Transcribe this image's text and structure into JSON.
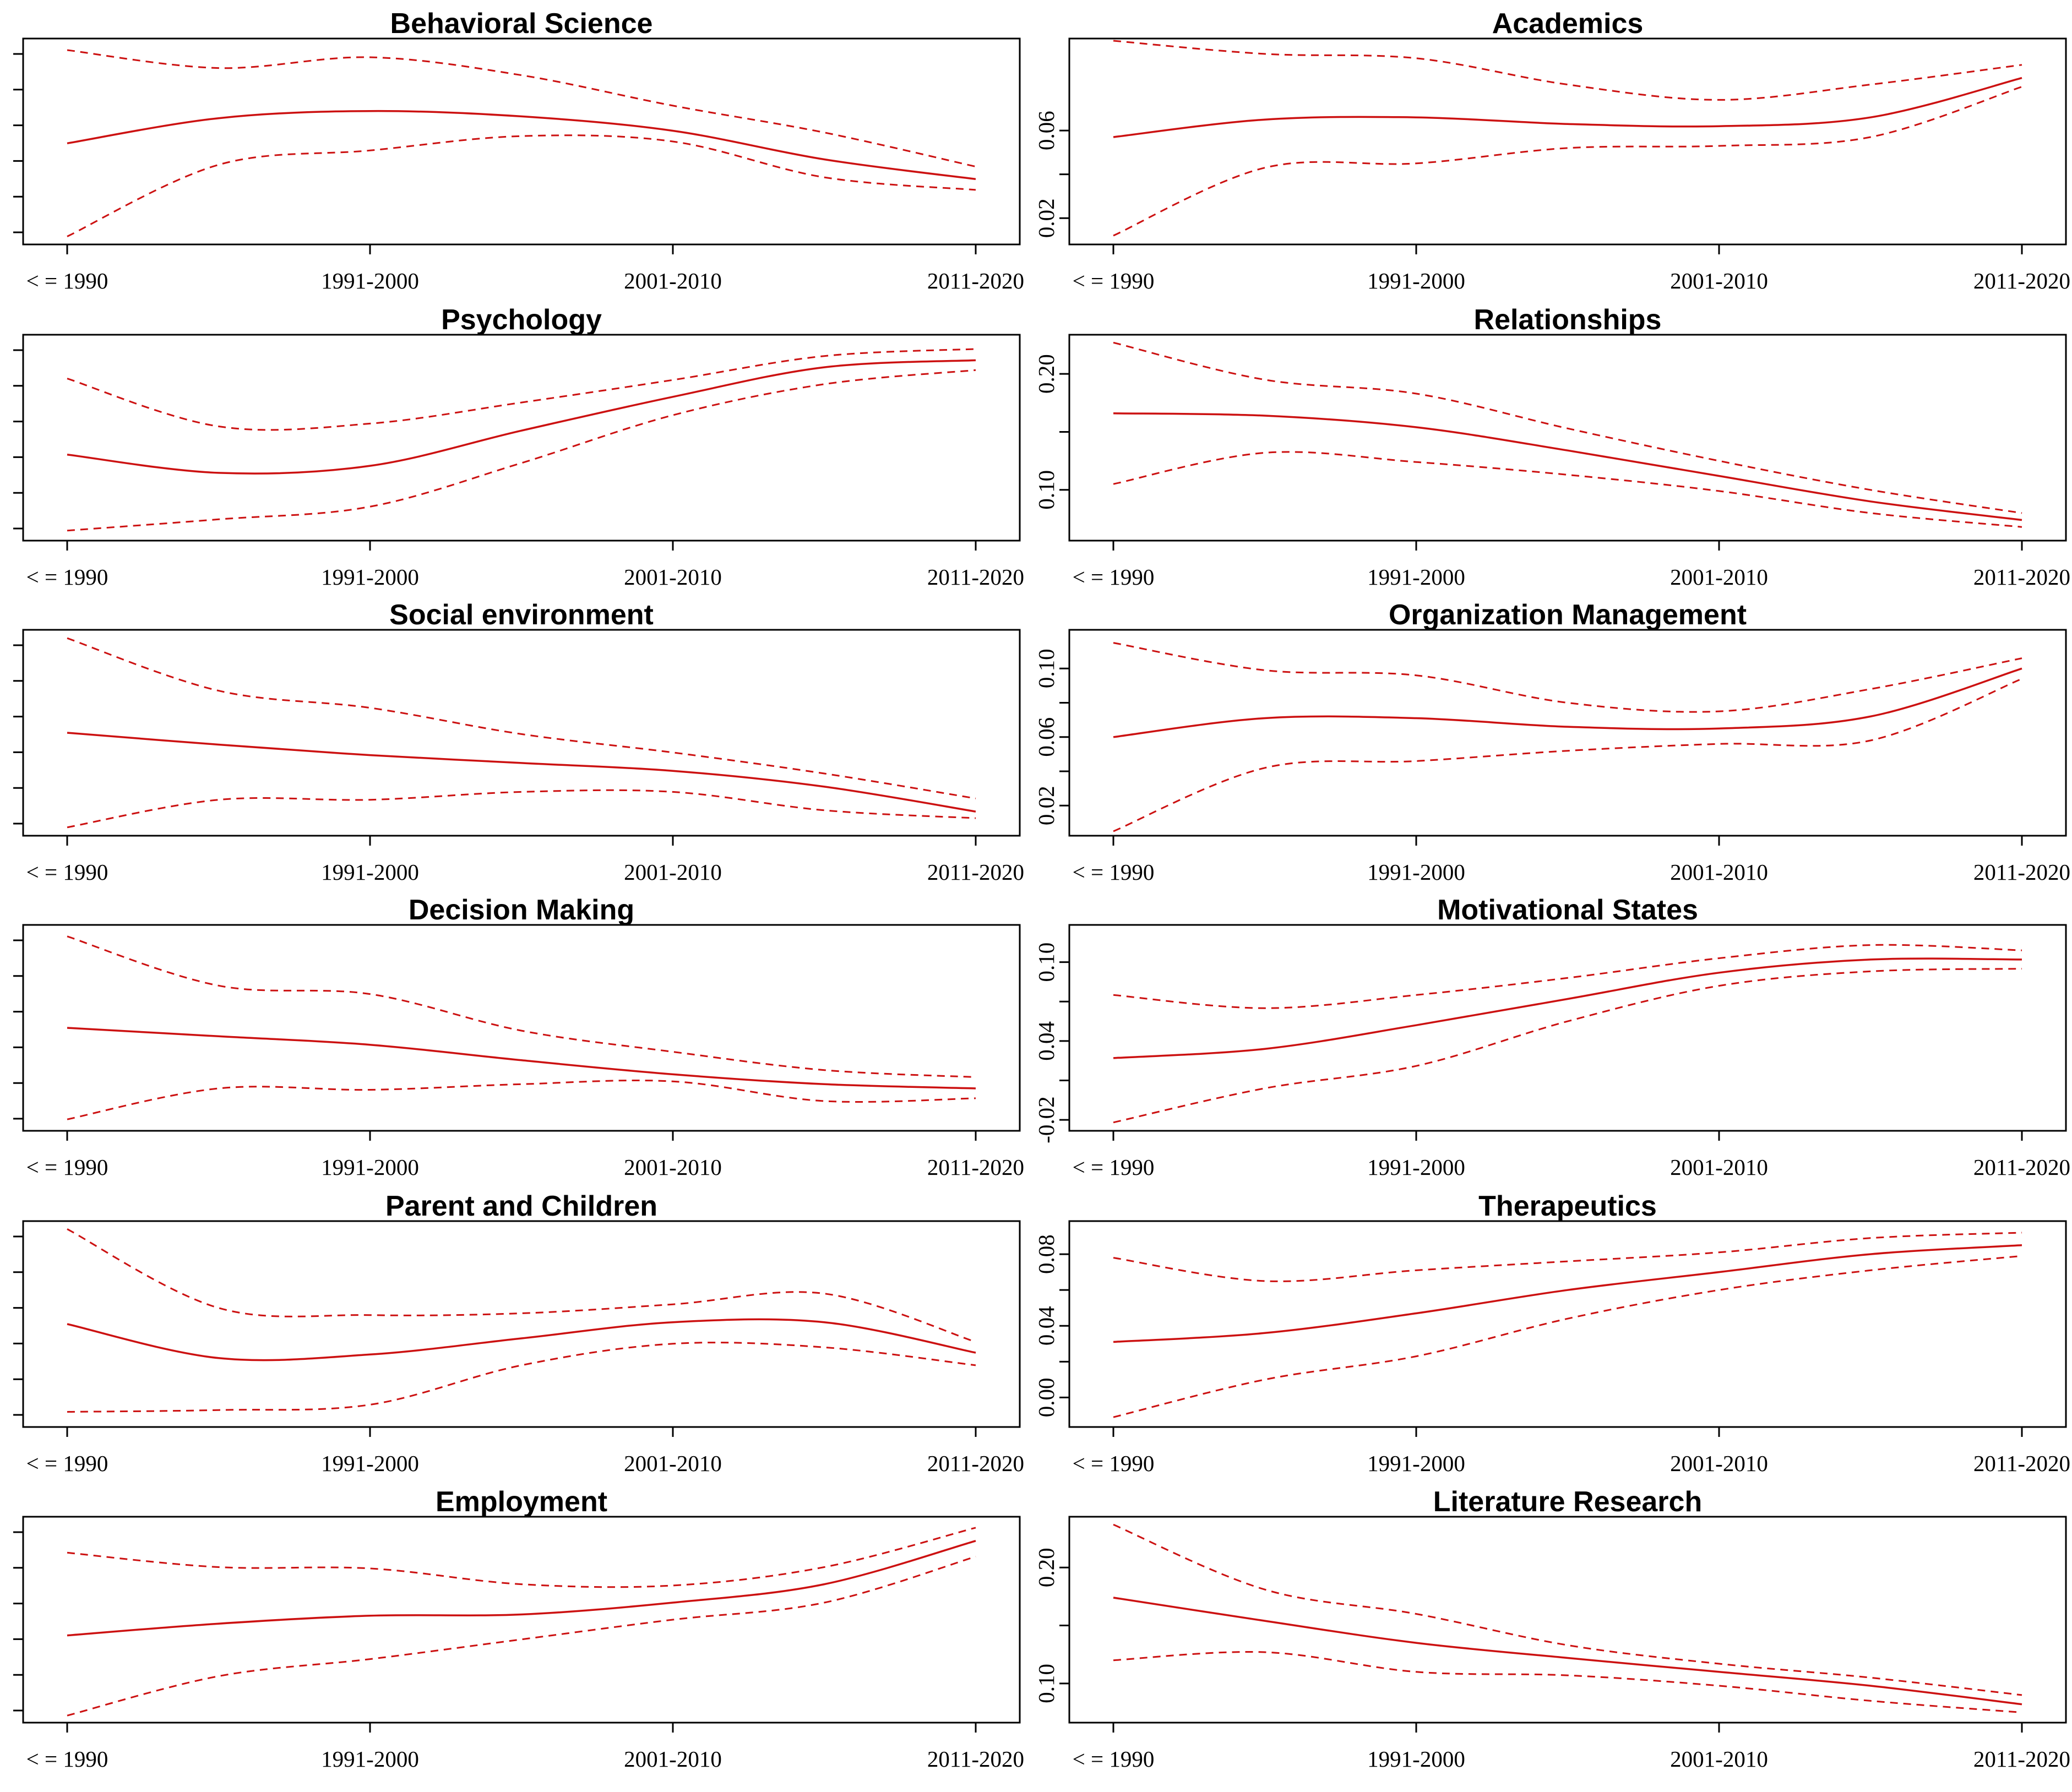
{
  "chart_data": [
    {
      "type": "line",
      "title": "Behavioral Science",
      "categories": [
        "< = 1990",
        "1991-2000",
        "2001-2010",
        "2011-2020"
      ],
      "x": [
        0,
        0.5,
        1,
        1.5,
        2,
        2.5,
        3
      ],
      "ylim": [
        0,
        0.11
      ],
      "yticks": [],
      "series": [
        {
          "name": "fit",
          "values": [
            0.054,
            0.068,
            0.072,
            0.069,
            0.061,
            0.045,
            0.034
          ]
        },
        {
          "name": "upper",
          "values": [
            0.106,
            0.096,
            0.102,
            0.092,
            0.075,
            0.06,
            0.041
          ]
        },
        {
          "name": "lower",
          "values": [
            0.002,
            0.042,
            0.05,
            0.058,
            0.055,
            0.035,
            0.028
          ]
        }
      ]
    },
    {
      "type": "line",
      "title": "Academics",
      "categories": [
        "< = 1990",
        "1991-2000",
        "2001-2010",
        "2011-2020"
      ],
      "x": [
        0,
        0.5,
        1,
        1.5,
        2,
        2.5,
        3
      ],
      "ylim": [
        0.01,
        0.1
      ],
      "yticks": [
        0.02,
        0.06
      ],
      "series": [
        {
          "name": "fit",
          "values": [
            0.057,
            0.065,
            0.066,
            0.063,
            0.062,
            0.066,
            0.084
          ]
        },
        {
          "name": "upper",
          "values": [
            0.101,
            0.095,
            0.093,
            0.081,
            0.074,
            0.081,
            0.09
          ]
        },
        {
          "name": "lower",
          "values": [
            0.012,
            0.043,
            0.045,
            0.052,
            0.053,
            0.057,
            0.08
          ]
        }
      ]
    },
    {
      "type": "line",
      "title": "Psychology",
      "categories": [
        "< = 1990",
        "1991-2000",
        "2001-2010",
        "2011-2020"
      ],
      "x": [
        0,
        0.5,
        1,
        1.5,
        2,
        2.5,
        3
      ],
      "ylim": [
        0,
        0.14
      ],
      "yticks": [],
      "series": [
        {
          "name": "fit",
          "values": [
            0.058,
            0.045,
            0.05,
            0.075,
            0.099,
            0.12,
            0.125
          ]
        },
        {
          "name": "upper",
          "values": [
            0.112,
            0.078,
            0.08,
            0.095,
            0.111,
            0.128,
            0.133
          ]
        },
        {
          "name": "lower",
          "values": [
            0.004,
            0.012,
            0.021,
            0.052,
            0.086,
            0.108,
            0.118
          ]
        }
      ]
    },
    {
      "type": "line",
      "title": "Relationships",
      "categories": [
        "< = 1990",
        "1991-2000",
        "2001-2010",
        "2011-2020"
      ],
      "x": [
        0,
        0.5,
        1,
        1.5,
        2,
        2.5,
        3
      ],
      "ylim": [
        0.06,
        0.23
      ],
      "yticks": [
        0.1,
        0.2
      ],
      "series": [
        {
          "name": "fit",
          "values": [
            0.166,
            0.164,
            0.154,
            0.134,
            0.112,
            0.09,
            0.074
          ]
        },
        {
          "name": "upper",
          "values": [
            0.227,
            0.195,
            0.183,
            0.153,
            0.125,
            0.1,
            0.08
          ]
        },
        {
          "name": "lower",
          "values": [
            0.105,
            0.132,
            0.124,
            0.113,
            0.099,
            0.08,
            0.068
          ]
        }
      ]
    },
    {
      "type": "line",
      "title": "Social environment",
      "categories": [
        "< = 1990",
        "1991-2000",
        "2001-2010",
        "2011-2020"
      ],
      "x": [
        0,
        0.5,
        1,
        1.5,
        2,
        2.5,
        3
      ],
      "ylim": [
        0,
        0.15
      ],
      "yticks": [],
      "series": [
        {
          "name": "fit",
          "values": [
            0.075,
            0.066,
            0.058,
            0.052,
            0.046,
            0.034,
            0.015
          ]
        },
        {
          "name": "upper",
          "values": [
            0.147,
            0.107,
            0.094,
            0.074,
            0.06,
            0.044,
            0.025
          ]
        },
        {
          "name": "lower",
          "values": [
            0.003,
            0.024,
            0.024,
            0.03,
            0.03,
            0.016,
            0.01
          ]
        }
      ]
    },
    {
      "type": "line",
      "title": "Organization Management",
      "categories": [
        "< = 1990",
        "1991-2000",
        "2001-2010",
        "2011-2020"
      ],
      "x": [
        0,
        0.5,
        1,
        1.5,
        2,
        2.5,
        3
      ],
      "ylim": [
        0.005,
        0.12
      ],
      "yticks": [
        0.02,
        0.06,
        0.1
      ],
      "series": [
        {
          "name": "fit",
          "values": [
            0.06,
            0.071,
            0.071,
            0.066,
            0.065,
            0.072,
            0.1
          ]
        },
        {
          "name": "upper",
          "values": [
            0.115,
            0.099,
            0.096,
            0.08,
            0.075,
            0.088,
            0.106
          ]
        },
        {
          "name": "lower",
          "values": [
            0.005,
            0.042,
            0.046,
            0.052,
            0.056,
            0.058,
            0.094
          ]
        }
      ]
    },
    {
      "type": "line",
      "title": "Decision Making",
      "categories": [
        "< = 1990",
        "1991-2000",
        "2001-2010",
        "2011-2020"
      ],
      "x": [
        0,
        0.5,
        1,
        1.5,
        2,
        2.5,
        3
      ],
      "ylim": [
        0,
        0.14
      ],
      "yticks": [],
      "series": [
        {
          "name": "fit",
          "values": [
            0.07,
            0.064,
            0.058,
            0.047,
            0.037,
            0.03,
            0.027
          ]
        },
        {
          "name": "upper",
          "values": [
            0.135,
            0.1,
            0.094,
            0.068,
            0.053,
            0.04,
            0.035
          ]
        },
        {
          "name": "lower",
          "values": [
            0.005,
            0.027,
            0.026,
            0.03,
            0.032,
            0.018,
            0.02
          ]
        }
      ]
    },
    {
      "type": "line",
      "title": "Motivational States",
      "categories": [
        "< = 1990",
        "1991-2000",
        "2001-2010",
        "2011-2020"
      ],
      "x": [
        0,
        0.5,
        1,
        1.5,
        2,
        2.5,
        3
      ],
      "ylim": [
        -0.025,
        0.125
      ],
      "yticks": [
        -0.02,
        0.04,
        0.1
      ],
      "series": [
        {
          "name": "fit",
          "values": [
            0.027,
            0.034,
            0.052,
            0.072,
            0.092,
            0.102,
            0.102
          ]
        },
        {
          "name": "upper",
          "values": [
            0.075,
            0.065,
            0.075,
            0.088,
            0.103,
            0.113,
            0.109
          ]
        },
        {
          "name": "lower",
          "values": [
            -0.022,
            0.004,
            0.021,
            0.055,
            0.082,
            0.093,
            0.095
          ]
        }
      ]
    },
    {
      "type": "line",
      "title": "Parent and Children",
      "categories": [
        "< = 1990",
        "1991-2000",
        "2001-2010",
        "2011-2020"
      ],
      "x": [
        0,
        0.5,
        1,
        1.5,
        2,
        2.5,
        3
      ],
      "ylim": [
        0,
        0.11
      ],
      "yticks": [],
      "series": [
        {
          "name": "fit",
          "values": [
            0.055,
            0.036,
            0.038,
            0.047,
            0.056,
            0.056,
            0.039
          ]
        },
        {
          "name": "upper",
          "values": [
            0.108,
            0.064,
            0.06,
            0.061,
            0.066,
            0.072,
            0.045
          ]
        },
        {
          "name": "lower",
          "values": [
            0.006,
            0.007,
            0.01,
            0.032,
            0.044,
            0.042,
            0.032
          ]
        }
      ]
    },
    {
      "type": "line",
      "title": "Therapeutics",
      "categories": [
        "< = 1990",
        "1991-2000",
        "2001-2010",
        "2011-2020"
      ],
      "x": [
        0,
        0.5,
        1,
        1.5,
        2,
        2.5,
        3
      ],
      "ylim": [
        -0.014,
        0.096
      ],
      "yticks": [
        0,
        0.04,
        0.08
      ],
      "series": [
        {
          "name": "fit",
          "values": [
            0.031,
            0.036,
            0.047,
            0.06,
            0.07,
            0.08,
            0.085
          ]
        },
        {
          "name": "upper",
          "values": [
            0.078,
            0.065,
            0.071,
            0.076,
            0.081,
            0.089,
            0.092
          ]
        },
        {
          "name": "lower",
          "values": [
            -0.011,
            0.01,
            0.023,
            0.044,
            0.06,
            0.071,
            0.079
          ]
        }
      ]
    },
    {
      "type": "line",
      "title": "Employment",
      "categories": [
        "< = 1990",
        "1991-2000",
        "2001-2010",
        "2011-2020"
      ],
      "x": [
        0,
        0.5,
        1,
        1.5,
        2,
        2.5,
        3
      ],
      "ylim": [
        0,
        0.15
      ],
      "yticks": [],
      "series": [
        {
          "name": "fit",
          "values": [
            0.063,
            0.072,
            0.078,
            0.079,
            0.088,
            0.102,
            0.135
          ]
        },
        {
          "name": "upper",
          "values": [
            0.126,
            0.115,
            0.114,
            0.102,
            0.101,
            0.115,
            0.145
          ]
        },
        {
          "name": "lower",
          "values": [
            0.002,
            0.032,
            0.045,
            0.06,
            0.075,
            0.088,
            0.123
          ]
        }
      ]
    },
    {
      "type": "line",
      "title": "Literature Research",
      "categories": [
        "< = 1990",
        "1991-2000",
        "2001-2010",
        "2011-2020"
      ],
      "x": [
        0,
        0.5,
        1,
        1.5,
        2,
        2.5,
        3
      ],
      "ylim": [
        0.07,
        0.24
      ],
      "yticks": [
        0.1,
        0.2
      ],
      "series": [
        {
          "name": "fit",
          "values": [
            0.174,
            0.154,
            0.135,
            0.122,
            0.11,
            0.098,
            0.082
          ]
        },
        {
          "name": "upper",
          "values": [
            0.237,
            0.181,
            0.16,
            0.133,
            0.117,
            0.105,
            0.09
          ]
        },
        {
          "name": "lower",
          "values": [
            0.12,
            0.127,
            0.11,
            0.107,
            0.098,
            0.085,
            0.075
          ]
        }
      ]
    }
  ],
  "colors": {
    "line": "#cc1111",
    "axis": "#000000",
    "background": "#ffffff"
  }
}
